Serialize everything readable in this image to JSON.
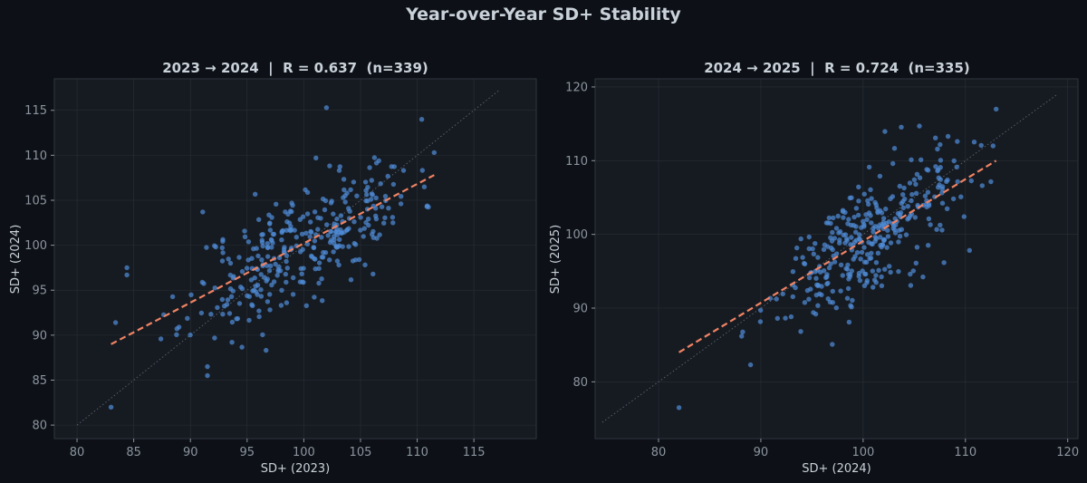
{
  "title": "Year-over-Year SD+ Stability",
  "colors": {
    "background": "#0d1117",
    "panel": "#161b22",
    "points": "#4f8ad6",
    "fit": "#f08363",
    "identity": "#6e7681",
    "text": "#c9d1d9",
    "ticks": "#8b949e"
  },
  "chart_data": [
    {
      "type": "scatter",
      "title": "2023 → 2024  |  R = 0.637  (n=339)",
      "xlabel": "SD+ (2023)",
      "ylabel": "SD+ (2024)",
      "xlim": [
        78,
        120.5
      ],
      "ylim": [
        78.5,
        118.5
      ],
      "xticks": [
        80,
        85,
        90,
        95,
        100,
        105,
        110,
        115
      ],
      "yticks": [
        80,
        85,
        90,
        95,
        100,
        105,
        110,
        115
      ],
      "grid": true,
      "identity_line": {
        "from": 80,
        "to": 117.3
      },
      "fit_line": {
        "x": [
          83,
          111.5
        ],
        "y": [
          89,
          107.8
        ]
      },
      "n_points": 339,
      "r": 0.637,
      "notable_points": [
        [
          83,
          82
        ],
        [
          91.5,
          86.5
        ],
        [
          91.5,
          85.5
        ],
        [
          84.4,
          97.5
        ],
        [
          84.4,
          96.7
        ],
        [
          83.4,
          91.4
        ],
        [
          102,
          115.3
        ],
        [
          111.5,
          110.3
        ],
        [
          110.4,
          114.0
        ]
      ]
    },
    {
      "type": "scatter",
      "title": "2024 → 2025  |  R = 0.724  (n=335)",
      "xlabel": "SD+ (2024)",
      "ylabel": "SD+ (2025)",
      "xlim": [
        73.8,
        121.0
      ],
      "ylim": [
        72.3,
        121.1
      ],
      "xticks": [
        80,
        90,
        100,
        110,
        120
      ],
      "yticks": [
        80,
        90,
        100,
        110,
        120
      ],
      "grid": true,
      "identity_line": {
        "from": 74.5,
        "to": 119
      },
      "fit_line": {
        "x": [
          82,
          113
        ],
        "y": [
          84,
          110
        ]
      },
      "n_points": 335,
      "r": 0.724,
      "notable_points": [
        [
          82,
          76.5
        ],
        [
          89,
          82.3
        ],
        [
          113,
          117
        ],
        [
          105.5,
          114.7
        ],
        [
          108.3,
          113.3
        ],
        [
          109.2,
          112.6
        ],
        [
          112.7,
          112
        ]
      ]
    }
  ]
}
